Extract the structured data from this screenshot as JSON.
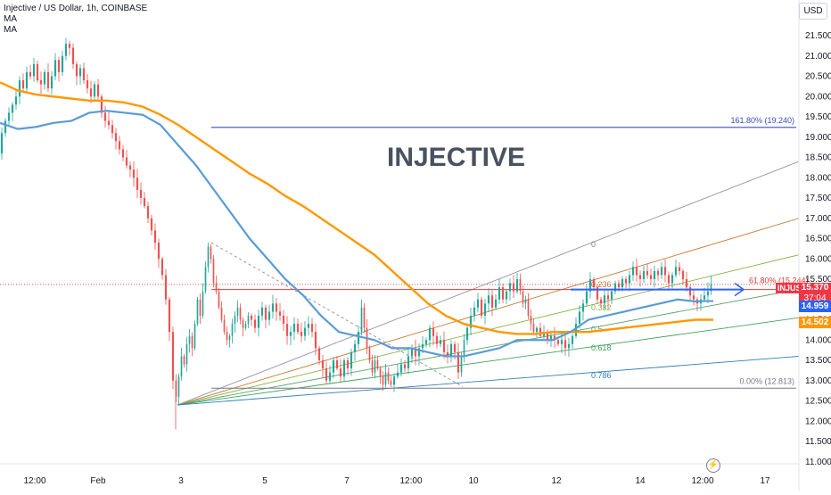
{
  "header": {
    "symbol_line": "Injective / US Dollar, 1h, COINBASE",
    "indicator_1": "MA",
    "indicator_2": "MA"
  },
  "currency_button": "USD",
  "watermark_text": "INJECTIVE",
  "colors": {
    "up": "#26a69a",
    "down": "#ef5350",
    "ma_fast": "#5b9bd5",
    "ma_slow": "#ff9800",
    "fib_level": "#3d4bbf",
    "resistance": "#e53935",
    "price_tag": "#f23645",
    "ma_fast_tag": "#2962ff",
    "ma_slow_tag": "#ff9800"
  },
  "chart_data": {
    "type": "candlestick",
    "symbol": "INJUSD",
    "timeframe": "1h",
    "exchange": "COINBASE",
    "y_ticks": [
      "21.500",
      "21.000",
      "20.500",
      "20.000",
      "19.500",
      "19.000",
      "18.500",
      "18.000",
      "17.500",
      "17.000",
      "16.500",
      "16.000",
      "15.500",
      "15.000",
      "14.500",
      "14.000",
      "13.500",
      "13.000",
      "12.500",
      "12.000",
      "11.500",
      "11.000"
    ],
    "ylim": [
      10.8,
      22.0
    ],
    "x_ticks": [
      "12:00",
      "Feb",
      "3",
      "5",
      "7",
      "12:00",
      "10",
      "12",
      "14",
      "12:00",
      "17"
    ],
    "price_path": [
      [
        0,
        18.6
      ],
      [
        4,
        19.1
      ],
      [
        8,
        19.4
      ],
      [
        12,
        19.6
      ],
      [
        16,
        19.8
      ],
      [
        20,
        20.0
      ],
      [
        24,
        20.4
      ],
      [
        28,
        20.2
      ],
      [
        32,
        20.6
      ],
      [
        36,
        20.5
      ],
      [
        40,
        20.8
      ],
      [
        44,
        20.4
      ],
      [
        48,
        20.3
      ],
      [
        52,
        20.6
      ],
      [
        56,
        20.2
      ],
      [
        60,
        20.5
      ],
      [
        64,
        20.9
      ],
      [
        68,
        20.6
      ],
      [
        72,
        21.0
      ],
      [
        76,
        21.3
      ],
      [
        80,
        21.2
      ],
      [
        84,
        20.8
      ],
      [
        88,
        20.5
      ],
      [
        92,
        20.7
      ],
      [
        96,
        20.4
      ],
      [
        100,
        20.2
      ],
      [
        104,
        20.0
      ],
      [
        108,
        20.3
      ],
      [
        112,
        20.0
      ],
      [
        116,
        19.6
      ],
      [
        120,
        19.4
      ],
      [
        124,
        19.3
      ],
      [
        128,
        19.1
      ],
      [
        132,
        18.9
      ],
      [
        136,
        18.7
      ],
      [
        140,
        18.5
      ],
      [
        144,
        18.3
      ],
      [
        148,
        18.2
      ],
      [
        152,
        18.0
      ],
      [
        156,
        17.7
      ],
      [
        160,
        17.5
      ],
      [
        164,
        17.3
      ],
      [
        168,
        17.0
      ],
      [
        172,
        16.7
      ],
      [
        176,
        16.4
      ],
      [
        180,
        16.0
      ],
      [
        184,
        15.6
      ],
      [
        188,
        15.0
      ],
      [
        192,
        14.2
      ],
      [
        196,
        13.0
      ],
      [
        199,
        12.6
      ],
      [
        202,
        13.1
      ],
      [
        205,
        13.6
      ],
      [
        208,
        13.4
      ],
      [
        211,
        13.9
      ],
      [
        214,
        14.1
      ],
      [
        217,
        13.8
      ],
      [
        220,
        14.4
      ],
      [
        223,
        15.0
      ],
      [
        226,
        14.6
      ],
      [
        229,
        15.2
      ],
      [
        232,
        15.8
      ],
      [
        235,
        16.3
      ],
      [
        238,
        16.0
      ],
      [
        241,
        15.4
      ],
      [
        244,
        15.2
      ],
      [
        247,
        14.8
      ],
      [
        250,
        14.5
      ],
      [
        253,
        14.2
      ],
      [
        256,
        14.0
      ],
      [
        259,
        14.1
      ],
      [
        262,
        14.4
      ],
      [
        265,
        14.6
      ],
      [
        268,
        14.8
      ],
      [
        271,
        14.5
      ],
      [
        274,
        14.3
      ],
      [
        277,
        14.4
      ],
      [
        280,
        14.6
      ],
      [
        284,
        14.5
      ],
      [
        288,
        14.3
      ],
      [
        292,
        14.6
      ],
      [
        296,
        14.8
      ],
      [
        300,
        14.5
      ],
      [
        304,
        14.7
      ],
      [
        308,
        14.9
      ],
      [
        312,
        14.7
      ],
      [
        316,
        14.6
      ],
      [
        320,
        14.4
      ],
      [
        324,
        14.1
      ],
      [
        328,
        14.2
      ],
      [
        332,
        14.4
      ],
      [
        336,
        14.2
      ],
      [
        340,
        14.1
      ],
      [
        344,
        14.3
      ],
      [
        348,
        14.4
      ],
      [
        352,
        14.2
      ],
      [
        356,
        13.8
      ],
      [
        360,
        13.5
      ],
      [
        364,
        13.3
      ],
      [
        368,
        13.0
      ],
      [
        372,
        13.2
      ],
      [
        376,
        13.5
      ],
      [
        380,
        13.3
      ],
      [
        384,
        13.1
      ],
      [
        388,
        13.5
      ],
      [
        392,
        13.3
      ],
      [
        396,
        13.7
      ],
      [
        400,
        13.9
      ],
      [
        404,
        14.2
      ],
      [
        407,
        14.8
      ],
      [
        410,
        14.3
      ],
      [
        413,
        13.8
      ],
      [
        416,
        13.5
      ],
      [
        419,
        13.2
      ],
      [
        422,
        13.5
      ],
      [
        425,
        13.3
      ],
      [
        428,
        13.1
      ],
      [
        431,
        12.9
      ],
      [
        434,
        13.2
      ],
      [
        437,
        13.0
      ],
      [
        440,
        12.9
      ],
      [
        444,
        13.1
      ],
      [
        448,
        13.2
      ],
      [
        452,
        13.4
      ],
      [
        456,
        13.3
      ],
      [
        460,
        13.6
      ],
      [
        464,
        13.8
      ],
      [
        468,
        13.6
      ],
      [
        472,
        13.8
      ],
      [
        476,
        13.9
      ],
      [
        480,
        14.0
      ],
      [
        484,
        14.3
      ],
      [
        488,
        14.1
      ],
      [
        492,
        13.9
      ],
      [
        496,
        14.0
      ],
      [
        500,
        13.7
      ],
      [
        504,
        13.6
      ],
      [
        508,
        13.9
      ],
      [
        512,
        13.7
      ],
      [
        516,
        13.2
      ],
      [
        519,
        13.6
      ],
      [
        522,
        14.0
      ],
      [
        526,
        14.3
      ],
      [
        530,
        14.6
      ],
      [
        534,
        14.8
      ],
      [
        538,
        15.0
      ],
      [
        542,
        14.6
      ],
      [
        546,
        14.9
      ],
      [
        550,
        15.1
      ],
      [
        554,
        14.8
      ],
      [
        558,
        15.0
      ],
      [
        562,
        15.3
      ],
      [
        566,
        15.0
      ],
      [
        570,
        15.2
      ],
      [
        574,
        15.4
      ],
      [
        578,
        15.2
      ],
      [
        582,
        15.5
      ],
      [
        585,
        15.2
      ],
      [
        588,
        14.9
      ],
      [
        591,
        15.0
      ],
      [
        594,
        14.6
      ],
      [
        597,
        14.4
      ],
      [
        600,
        14.2
      ],
      [
        604,
        14.3
      ],
      [
        608,
        14.1
      ],
      [
        612,
        14.2
      ],
      [
        616,
        14.0
      ],
      [
        620,
        14.1
      ],
      [
        624,
        14.0
      ],
      [
        628,
        13.9
      ],
      [
        632,
        14.0
      ],
      [
        636,
        13.8
      ],
      [
        640,
        13.9
      ],
      [
        644,
        14.1
      ],
      [
        648,
        14.4
      ],
      [
        652,
        14.7
      ],
      [
        656,
        14.9
      ],
      [
        660,
        15.2
      ],
      [
        664,
        15.5
      ],
      [
        668,
        15.3
      ],
      [
        672,
        15.0
      ],
      [
        676,
        14.9
      ],
      [
        680,
        15.1
      ],
      [
        684,
        15.0
      ],
      [
        688,
        15.2
      ],
      [
        692,
        15.4
      ],
      [
        696,
        15.3
      ],
      [
        700,
        15.5
      ],
      [
        704,
        15.4
      ],
      [
        708,
        15.6
      ],
      [
        712,
        15.8
      ],
      [
        716,
        15.6
      ],
      [
        720,
        15.5
      ],
      [
        724,
        15.7
      ],
      [
        728,
        15.6
      ],
      [
        732,
        15.5
      ],
      [
        736,
        15.7
      ],
      [
        740,
        15.6
      ],
      [
        744,
        15.8
      ],
      [
        748,
        15.6
      ],
      [
        752,
        15.4
      ],
      [
        756,
        15.6
      ],
      [
        760,
        15.8
      ],
      [
        764,
        15.7
      ],
      [
        768,
        15.5
      ],
      [
        772,
        15.3
      ],
      [
        776,
        15.1
      ],
      [
        780,
        15.0
      ],
      [
        784,
        14.9
      ],
      [
        788,
        15.0
      ],
      [
        792,
        15.1
      ],
      [
        796,
        15.2
      ],
      [
        799,
        15.37
      ]
    ],
    "ma_fast_path": [
      [
        0,
        19.35
      ],
      [
        20,
        19.2
      ],
      [
        40,
        19.25
      ],
      [
        60,
        19.35
      ],
      [
        80,
        19.4
      ],
      [
        100,
        19.6
      ],
      [
        120,
        19.65
      ],
      [
        140,
        19.6
      ],
      [
        160,
        19.55
      ],
      [
        180,
        19.3
      ],
      [
        200,
        18.8
      ],
      [
        220,
        18.3
      ],
      [
        240,
        17.7
      ],
      [
        260,
        17.1
      ],
      [
        280,
        16.5
      ],
      [
        300,
        16.0
      ],
      [
        320,
        15.5
      ],
      [
        340,
        15.1
      ],
      [
        360,
        14.6
      ],
      [
        380,
        14.2
      ],
      [
        400,
        14.1
      ],
      [
        420,
        14.0
      ],
      [
        440,
        13.8
      ],
      [
        460,
        13.8
      ],
      [
        480,
        13.7
      ],
      [
        500,
        13.6
      ],
      [
        520,
        13.6
      ],
      [
        540,
        13.7
      ],
      [
        560,
        13.8
      ],
      [
        580,
        14.0
      ],
      [
        600,
        14.0
      ],
      [
        620,
        14.0
      ],
      [
        640,
        14.2
      ],
      [
        660,
        14.5
      ],
      [
        680,
        14.6
      ],
      [
        700,
        14.7
      ],
      [
        720,
        14.8
      ],
      [
        740,
        14.9
      ],
      [
        760,
        15.0
      ],
      [
        780,
        14.95
      ],
      [
        790,
        14.96
      ],
      [
        800,
        14.96
      ]
    ],
    "ma_slow_path": [
      [
        0,
        20.35
      ],
      [
        20,
        20.15
      ],
      [
        40,
        20.05
      ],
      [
        60,
        20.0
      ],
      [
        80,
        19.95
      ],
      [
        100,
        19.9
      ],
      [
        120,
        19.9
      ],
      [
        140,
        19.85
      ],
      [
        160,
        19.75
      ],
      [
        180,
        19.55
      ],
      [
        200,
        19.3
      ],
      [
        220,
        19.0
      ],
      [
        240,
        18.7
      ],
      [
        260,
        18.4
      ],
      [
        280,
        18.1
      ],
      [
        300,
        17.85
      ],
      [
        320,
        17.55
      ],
      [
        340,
        17.3
      ],
      [
        360,
        17.0
      ],
      [
        380,
        16.7
      ],
      [
        400,
        16.4
      ],
      [
        420,
        16.1
      ],
      [
        440,
        15.7
      ],
      [
        460,
        15.3
      ],
      [
        480,
        14.9
      ],
      [
        500,
        14.6
      ],
      [
        520,
        14.4
      ],
      [
        540,
        14.3
      ],
      [
        560,
        14.2
      ],
      [
        580,
        14.15
      ],
      [
        600,
        14.15
      ],
      [
        620,
        14.2
      ],
      [
        640,
        14.2
      ],
      [
        660,
        14.2
      ],
      [
        680,
        14.25
      ],
      [
        700,
        14.3
      ],
      [
        720,
        14.35
      ],
      [
        740,
        14.4
      ],
      [
        760,
        14.45
      ],
      [
        780,
        14.5
      ],
      [
        800,
        14.5
      ]
    ],
    "fib_extension": {
      "label": "161.80% (19.240)",
      "value": 19.24
    },
    "fib_retracement": {
      "label": "61.80% (15.244)",
      "value": 15.244
    },
    "fib_base": {
      "label": "0.00% (12.813)",
      "value": 12.813
    },
    "fan_labels": [
      "0",
      "0.236",
      "0.382",
      "0.5",
      "0.618",
      "0.786"
    ],
    "last_price": {
      "symbol": "INJUSD",
      "price": "15.370",
      "countdown": "37:04"
    },
    "ma_fast_value": "14.959",
    "ma_slow_value": "14.502"
  }
}
